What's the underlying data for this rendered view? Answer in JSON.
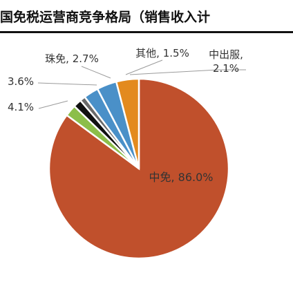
{
  "title": "国免税运营商竞争格局（销售收入计",
  "chart_data": {
    "type": "pie",
    "title": "国免税运营商竞争格局（销售收入计",
    "categories": [
      "中免",
      "中出服",
      "其他",
      "",
      "珠免",
      "",
      ""
    ],
    "values": [
      86.0,
      2.1,
      1.5,
      1.0,
      2.7,
      3.6,
      4.1
    ],
    "labels": [
      "中免, 86.0%",
      "中出服,\n2.1%",
      "其他, 1.5%",
      "",
      "珠免, 2.7%",
      "3.6%",
      "4.1%"
    ],
    "colors": [
      "#C0502C",
      "#8CBE4A",
      "#111111",
      "#6A6A6A",
      "#4A90C8",
      "#4A90C8",
      "#E38A1E"
    ],
    "legend": "none"
  }
}
